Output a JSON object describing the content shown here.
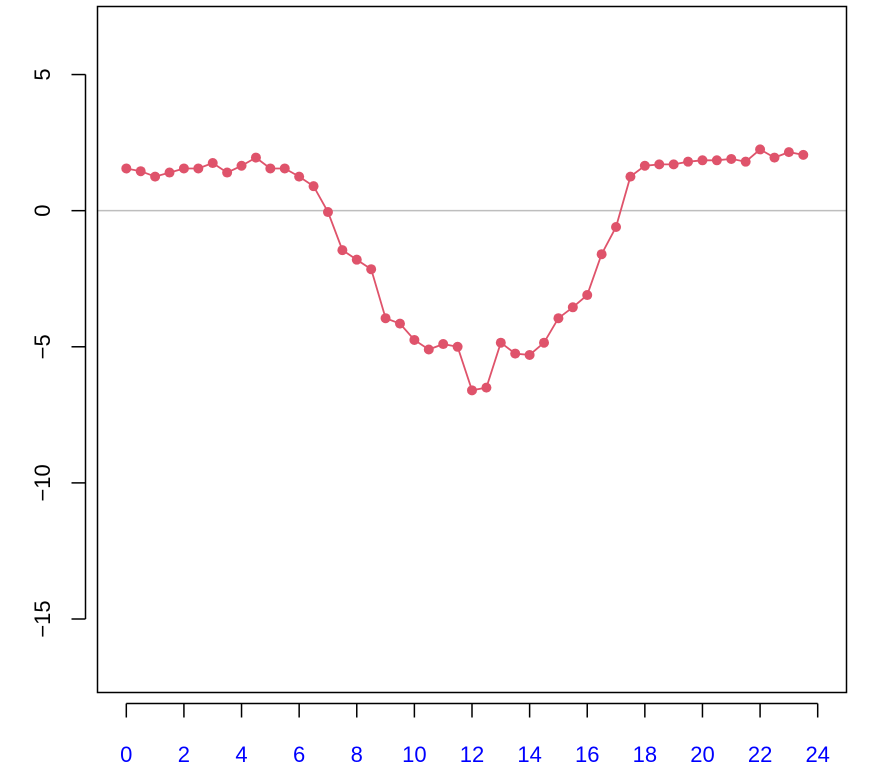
{
  "chart_data": {
    "type": "line",
    "title": "",
    "xlabel": "",
    "ylabel": "",
    "xlim": [
      -1,
      25
    ],
    "ylim": [
      -17.7,
      7.5
    ],
    "x_ticks": [
      0,
      2,
      4,
      6,
      8,
      10,
      12,
      14,
      16,
      18,
      20,
      22,
      24
    ],
    "x_tick_labels": [
      "0",
      "2",
      "4",
      "6",
      "8",
      "10",
      "12",
      "14",
      "16",
      "18",
      "20",
      "22",
      "24"
    ],
    "y_ticks": [
      5,
      0,
      -5,
      -10,
      -15
    ],
    "y_tick_labels": [
      "5",
      "0",
      "−5",
      "−10",
      "−15"
    ],
    "reference_line": {
      "y": 0,
      "color": "#bebebe"
    },
    "grid": false,
    "colors": {
      "series": "#df536b",
      "x_tick_labels": "#0000ff",
      "y_tick_labels": "#000000",
      "axis": "#000000"
    },
    "series": [
      {
        "x": [
          0,
          0.5,
          1,
          1.5,
          2,
          2.5,
          3,
          3.5,
          4,
          4.5,
          5,
          5.5,
          6,
          6.5,
          7,
          7.5,
          8,
          8.5,
          9,
          9.5,
          10,
          10.5,
          11,
          11.5,
          12,
          12.5,
          13,
          13.5,
          14,
          14.5,
          15,
          15.5,
          16,
          16.5,
          17,
          17.5,
          18,
          18.5,
          19,
          19.5,
          20,
          20.5,
          21,
          21.5,
          22,
          22.5,
          23,
          23.5
        ],
        "values": [
          1.55,
          1.45,
          1.25,
          1.4,
          1.55,
          1.55,
          1.75,
          1.4,
          1.65,
          1.95,
          1.55,
          1.55,
          1.25,
          0.9,
          -0.05,
          -1.45,
          -1.8,
          -2.15,
          -3.95,
          -4.15,
          -4.75,
          -5.1,
          -4.9,
          -5.0,
          -6.6,
          -6.5,
          -4.85,
          -5.25,
          -5.3,
          -4.85,
          -3.95,
          -3.55,
          -3.1,
          -1.6,
          -0.6,
          1.25,
          1.65,
          1.7,
          1.7,
          1.8,
          1.85,
          1.85,
          1.9,
          1.8,
          2.25,
          1.95,
          2.15,
          2.05
        ]
      }
    ]
  }
}
